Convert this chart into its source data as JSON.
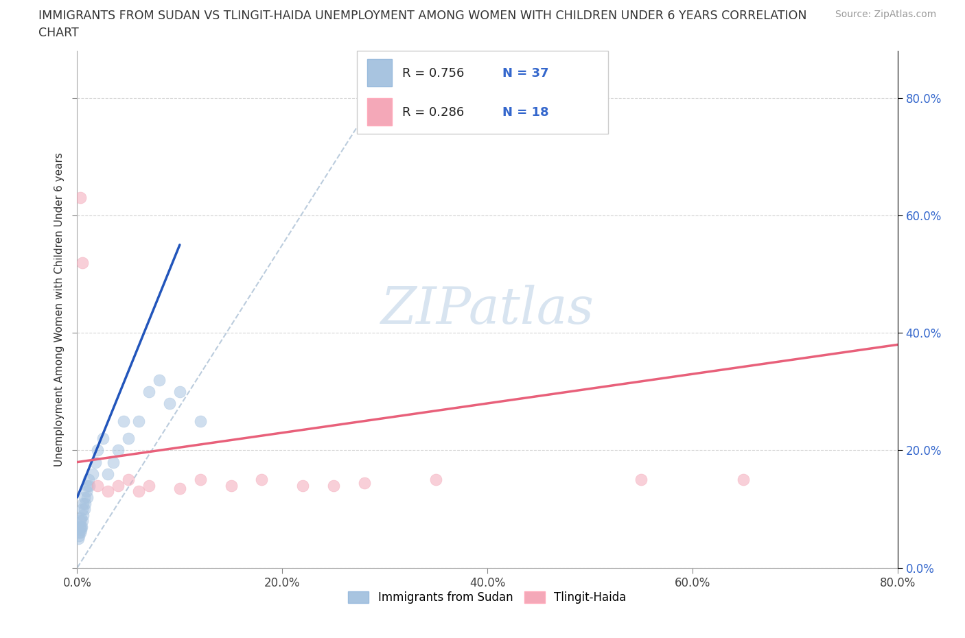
{
  "title_line1": "IMMIGRANTS FROM SUDAN VS TLINGIT-HAIDA UNEMPLOYMENT AMONG WOMEN WITH CHILDREN UNDER 6 YEARS CORRELATION",
  "title_line2": "CHART",
  "source": "Source: ZipAtlas.com",
  "ylabel": "Unemployment Among Women with Children Under 6 years",
  "blue_label": "Immigrants from Sudan",
  "pink_label": "Tlingit-Haida",
  "blue_R": 0.756,
  "blue_N": 37,
  "pink_R": 0.286,
  "pink_N": 18,
  "blue_scatter_color": "#A8C4E0",
  "pink_scatter_color": "#F4A8B8",
  "blue_line_color": "#2255BB",
  "pink_line_color": "#E8607A",
  "dashed_line_color": "#BBCCDD",
  "watermark_color": "#D8E4F0",
  "xlim": [
    0,
    80
  ],
  "ylim": [
    0,
    88
  ],
  "xticks": [
    0,
    20,
    40,
    60,
    80
  ],
  "yticks": [
    0,
    20,
    40,
    60,
    80
  ],
  "xtick_labels": [
    "0.0%",
    "20.0%",
    "40.0%",
    "60.0%",
    "80.0%"
  ],
  "ytick_labels": [
    "0.0%",
    "20.0%",
    "40.0%",
    "60.0%",
    "80.0%"
  ],
  "blue_x": [
    0.1,
    0.15,
    0.2,
    0.25,
    0.3,
    0.3,
    0.35,
    0.4,
    0.4,
    0.45,
    0.5,
    0.5,
    0.6,
    0.6,
    0.7,
    0.7,
    0.8,
    0.9,
    1.0,
    1.0,
    1.1,
    1.2,
    1.5,
    1.8,
    2.0,
    2.5,
    3.0,
    3.5,
    4.0,
    4.5,
    5.0,
    6.0,
    7.0,
    8.0,
    9.0,
    10.0,
    12.0
  ],
  "blue_y": [
    5.0,
    6.0,
    5.5,
    7.0,
    6.0,
    8.0,
    7.0,
    6.5,
    8.5,
    7.0,
    8.0,
    10.0,
    9.0,
    11.0,
    10.0,
    12.0,
    11.0,
    13.0,
    14.0,
    12.0,
    15.0,
    14.0,
    16.0,
    18.0,
    20.0,
    22.0,
    16.0,
    18.0,
    20.0,
    25.0,
    22.0,
    25.0,
    30.0,
    32.0,
    28.0,
    30.0,
    25.0
  ],
  "pink_x": [
    0.3,
    0.5,
    2.0,
    3.0,
    4.0,
    5.0,
    6.0,
    7.0,
    10.0,
    12.0,
    15.0,
    18.0,
    22.0,
    25.0,
    28.0,
    35.0,
    55.0,
    65.0
  ],
  "pink_y": [
    63.0,
    52.0,
    14.0,
    13.0,
    14.0,
    15.0,
    13.0,
    14.0,
    13.5,
    15.0,
    14.0,
    15.0,
    14.0,
    14.0,
    14.5,
    15.0,
    15.0,
    15.0
  ],
  "blue_trend_x0": 0,
  "blue_trend_y0": 12.0,
  "blue_trend_x1": 10.0,
  "blue_trend_y1": 55.0,
  "pink_trend_x0": 0,
  "pink_trend_y0": 18.0,
  "pink_trend_x1": 80.0,
  "pink_trend_y1": 38.0,
  "dash_x0": 0,
  "dash_y0": 0,
  "dash_x1": 32,
  "dash_y1": 88
}
